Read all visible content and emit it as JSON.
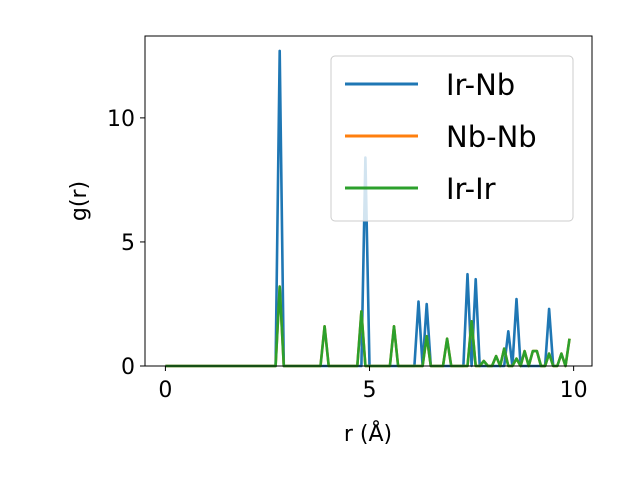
{
  "chart_data": {
    "type": "line",
    "title": "",
    "xlabel": "r (Å)",
    "ylabel": "g(r)",
    "xlim": [
      -0.5,
      10.45
    ],
    "ylim": [
      0,
      13.3
    ],
    "xticks": [
      0,
      5,
      10
    ],
    "xtick_labels": [
      "0",
      "5",
      "10"
    ],
    "yticks": [
      0,
      5,
      10
    ],
    "ytick_labels": [
      "0",
      "5",
      "10"
    ],
    "grid": false,
    "legend_position": "top-right",
    "series": [
      {
        "name": "Ir-Nb",
        "color": "#1f77b4",
        "x": [
          0.0,
          2.7,
          2.8,
          2.9,
          4.8,
          4.9,
          5.0,
          6.1,
          6.2,
          6.3,
          6.4,
          6.5,
          7.3,
          7.4,
          7.5,
          7.6,
          7.7,
          8.3,
          8.4,
          8.5,
          8.6,
          8.7,
          9.3,
          9.4,
          9.5
        ],
        "y": [
          0.0,
          0.0,
          12.7,
          0.0,
          0.0,
          8.4,
          0.0,
          0.0,
          2.6,
          0.0,
          2.5,
          0.0,
          0.0,
          3.7,
          0.0,
          3.5,
          0.0,
          0.0,
          1.4,
          0.0,
          2.7,
          0.0,
          0.0,
          2.3,
          0.0
        ]
      },
      {
        "name": "Nb-Nb",
        "color": "#ff7f0e",
        "x": [
          0.0,
          2.7,
          2.8,
          2.9,
          3.8,
          3.9,
          4.0,
          4.7,
          4.8,
          4.9,
          5.5,
          5.6,
          5.7,
          6.3,
          6.4,
          6.5,
          6.8,
          6.9,
          7.0,
          7.4,
          7.5,
          7.6,
          7.7,
          7.8,
          7.9,
          8.0,
          8.1,
          8.2,
          8.3,
          8.4,
          8.5,
          8.6,
          8.7,
          8.8,
          8.9,
          9.0,
          9.1,
          9.2,
          9.3,
          9.4,
          9.5,
          9.6,
          9.7,
          9.8,
          9.9
        ],
        "y": [
          0.0,
          0.0,
          3.2,
          0.0,
          0.0,
          1.6,
          0.0,
          0.0,
          2.2,
          0.0,
          0.0,
          1.6,
          0.0,
          0.0,
          1.2,
          0.0,
          0.0,
          1.1,
          0.0,
          0.0,
          1.8,
          0.0,
          0.0,
          0.2,
          0.0,
          0.0,
          0.4,
          0.0,
          0.7,
          0.0,
          0.0,
          0.3,
          0.0,
          0.6,
          0.0,
          0.6,
          0.6,
          0.0,
          0.0,
          0.5,
          0.0,
          0.0,
          0.5,
          0.0,
          1.1
        ]
      },
      {
        "name": "Ir-Ir",
        "color": "#2ca02c",
        "x": [
          0.0,
          2.7,
          2.8,
          2.9,
          3.8,
          3.9,
          4.0,
          4.7,
          4.8,
          4.9,
          5.5,
          5.6,
          5.7,
          6.3,
          6.4,
          6.5,
          6.8,
          6.9,
          7.0,
          7.4,
          7.5,
          7.6,
          7.7,
          7.8,
          7.9,
          8.0,
          8.1,
          8.2,
          8.3,
          8.4,
          8.5,
          8.6,
          8.7,
          8.8,
          8.9,
          9.0,
          9.1,
          9.2,
          9.3,
          9.4,
          9.5,
          9.6,
          9.7,
          9.8,
          9.9
        ],
        "y": [
          0.0,
          0.0,
          3.2,
          0.0,
          0.0,
          1.6,
          0.0,
          0.0,
          2.2,
          0.0,
          0.0,
          1.6,
          0.0,
          0.0,
          1.2,
          0.0,
          0.0,
          1.1,
          0.0,
          0.0,
          1.8,
          0.0,
          0.0,
          0.2,
          0.0,
          0.0,
          0.4,
          0.0,
          0.7,
          0.0,
          0.0,
          0.3,
          0.0,
          0.6,
          0.0,
          0.6,
          0.6,
          0.0,
          0.0,
          0.5,
          0.0,
          0.0,
          0.5,
          0.0,
          1.1
        ]
      }
    ]
  }
}
